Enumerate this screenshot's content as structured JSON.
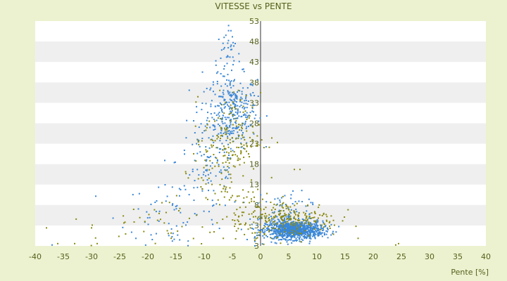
{
  "chart_data": {
    "type": "scatter",
    "title": "VITESSE vs PENTE",
    "xlabel": "Pente [%]",
    "ylabel": "",
    "xlim": [
      -40,
      40
    ],
    "ylim": [
      3,
      53
    ],
    "xticks": [
      "-40",
      "-35",
      "-30",
      "-25",
      "-20",
      "-15",
      "-10",
      "-5",
      "0",
      "5",
      "10",
      "15",
      "20",
      "25",
      "30",
      "35",
      "40"
    ],
    "yticks": [
      "53",
      "48",
      "43",
      "38",
      "33",
      "28",
      "23",
      "18",
      "13",
      "8",
      "3",
      "3"
    ],
    "grid": "horizontal alternating bands",
    "colors": {
      "background": "#ecf2d0",
      "band": "#efefef",
      "blue": "#3a86d6",
      "olive": "#8a8a10",
      "axis": "#55601b"
    },
    "series": [
      {
        "color": "#3a86d6",
        "clusters": [
          {
            "cx": -5,
            "cy": 33,
            "sx": 2.2,
            "sy": 4,
            "n": 300
          },
          {
            "cx": -6,
            "cy": 45,
            "sx": 1.2,
            "sy": 3,
            "n": 40
          },
          {
            "cx": -9,
            "cy": 22,
            "sx": 3,
            "sy": 6,
            "n": 110
          },
          {
            "cx": -15,
            "cy": 10,
            "sx": 5,
            "sy": 4,
            "n": 70
          },
          {
            "cx": 6,
            "cy": 6.5,
            "sx": 2.5,
            "sy": 1,
            "n": 900
          },
          {
            "cx": 4,
            "cy": 9,
            "sx": 2.5,
            "sy": 3,
            "n": 120
          }
        ],
        "points": [
          [
            -41,
            3.5
          ],
          [
            -37,
            3.2
          ],
          [
            -5,
            49.5
          ],
          [
            -4.5,
            48
          ],
          [
            -17,
            22
          ],
          [
            -1,
            3
          ],
          [
            -1,
            4
          ],
          [
            -1,
            5
          ]
        ]
      },
      {
        "color": "#8a8a10",
        "clusters": [
          {
            "cx": -5,
            "cy": 27,
            "sx": 2.5,
            "sy": 5,
            "n": 150
          },
          {
            "cx": -8,
            "cy": 20,
            "sx": 3,
            "sy": 6,
            "n": 50
          },
          {
            "cx": 6,
            "cy": 9,
            "sx": 4,
            "sy": 2,
            "n": 200
          },
          {
            "cx": -2,
            "cy": 10,
            "sx": 2.5,
            "sy": 3,
            "n": 80
          },
          {
            "cx": -18,
            "cy": 8,
            "sx": 6,
            "sy": 3,
            "n": 40
          }
        ],
        "points": [
          [
            -38,
            7
          ],
          [
            -36,
            3.5
          ],
          [
            -33,
            3.5
          ],
          [
            -30,
            7
          ],
          [
            -29,
            3.5
          ],
          [
            24,
            3.2
          ],
          [
            24.5,
            3.5
          ],
          [
            2,
            27
          ],
          [
            3,
            26
          ],
          [
            6,
            20
          ],
          [
            7,
            20
          ]
        ]
      }
    ]
  }
}
